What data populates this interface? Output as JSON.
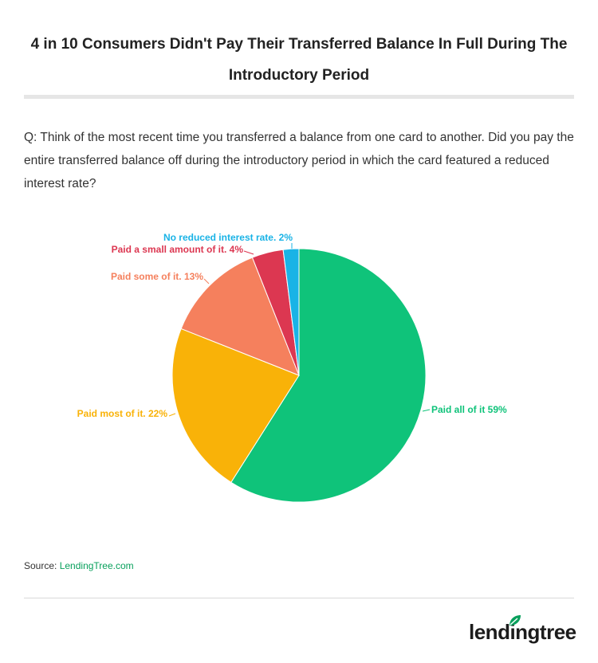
{
  "title": "4 in 10 Consumers Didn't Pay Their Transferred Balance In Full During The Introductory Period",
  "question": "Q: Think of the most recent time you transferred a balance from one card to another. Did you pay the entire transferred balance off during the introductory period in which the card featured a reduced interest rate?",
  "source": {
    "label": "Source: ",
    "link_text": "LendingTree.com"
  },
  "logo": {
    "text": "lendingtree",
    "accent_color": "#08a05c"
  },
  "chart_data": {
    "type": "pie",
    "slices": [
      {
        "label": "Paid all of it 59%",
        "value": 59,
        "color": "#0fc37a",
        "label_side": "right"
      },
      {
        "label": "Paid most of it. 22%",
        "value": 22,
        "color": "#f9b208",
        "label_side": "left"
      },
      {
        "label": "Paid some of it. 13%",
        "value": 13,
        "color": "#f5805d",
        "label_side": "left"
      },
      {
        "label": "Paid a small amount of it. 4%",
        "value": 4,
        "color": "#dc3751",
        "label_side": "left"
      },
      {
        "label": "No reduced interest rate. 2%",
        "value": 2,
        "color": "#19b3e6",
        "label_side": "left"
      }
    ]
  }
}
